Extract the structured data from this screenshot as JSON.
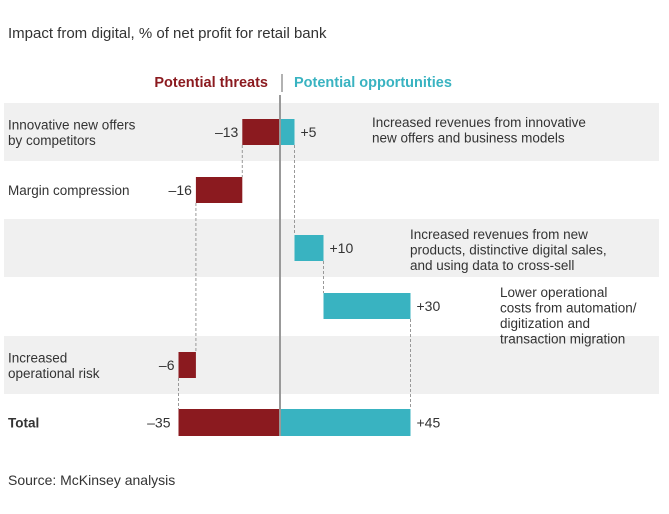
{
  "title": "Impact from digital, % of net profit for retail bank",
  "source": "Source: McKinsey analysis",
  "legend": {
    "threats": "Potential threats",
    "opportunities": "Potential opportunities"
  },
  "colors": {
    "threat": "#8b1a1f",
    "opportunity": "#39b3c1",
    "band": "#f0f0f0",
    "axis": "#999999",
    "dashed": "#999999",
    "text": "#333333"
  },
  "chart_data": {
    "type": "bar",
    "subtype": "waterfall",
    "title": "Impact from digital, % of net profit for retail bank",
    "xlim": [
      -35,
      45
    ],
    "series": [
      {
        "name": "Potential threats",
        "values": [
          -13,
          -16,
          -6
        ]
      },
      {
        "name": "Potential opportunities",
        "values": [
          5,
          10,
          30
        ]
      }
    ],
    "rows": [
      {
        "left_label": [
          "Innovative new offers",
          "by competitors"
        ],
        "right_label": [
          "Increased revenues from innovative",
          "new offers and business models"
        ],
        "threat": {
          "start": 0,
          "end": -13,
          "label": "–13"
        },
        "opp": {
          "start": 0,
          "end": 5,
          "label": "+5"
        },
        "band": true
      },
      {
        "left_label": [
          "Margin compression"
        ],
        "right_label": [],
        "threat": {
          "start": -13,
          "end": -29,
          "label": "–16"
        },
        "opp": null,
        "band": false
      },
      {
        "left_label": [],
        "right_label": [
          "Increased revenues from new",
          "products, distinctive digital sales,",
          "and using data to cross-sell"
        ],
        "threat": null,
        "opp": {
          "start": 5,
          "end": 15,
          "label": "+10"
        },
        "band": true
      },
      {
        "left_label": [],
        "right_label": [
          "Lower operational",
          "costs from automation/",
          "digitization and",
          "transaction migration"
        ],
        "threat": null,
        "opp": {
          "start": 15,
          "end": 45,
          "label": "+30"
        },
        "band": false
      },
      {
        "left_label": [
          "Increased",
          "operational risk"
        ],
        "right_label": [],
        "threat": {
          "start": -29,
          "end": -35,
          "label": "–6"
        },
        "opp": null,
        "band": true
      }
    ],
    "total": {
      "label": "Total",
      "threat": {
        "start": 0,
        "end": -35,
        "label": "–35"
      },
      "opp": {
        "start": 0,
        "end": 45,
        "label": "+45"
      }
    }
  }
}
